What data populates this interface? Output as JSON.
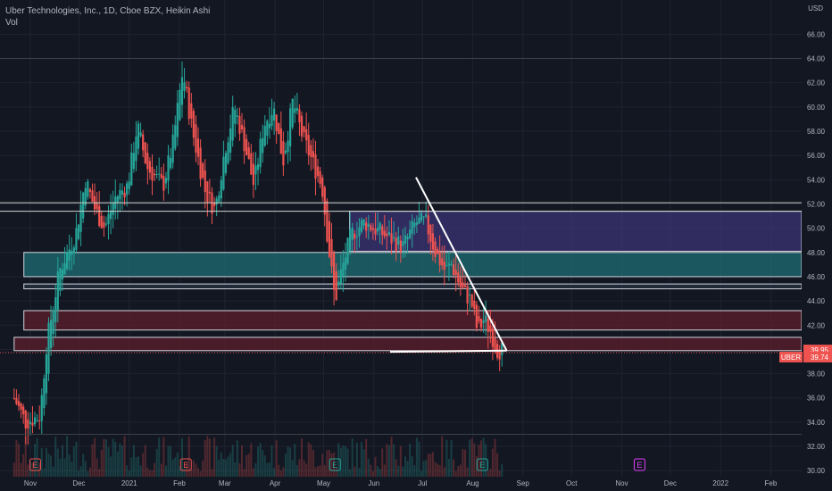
{
  "legend": {
    "title": "Uber Technologies, Inc., 1D, Cboe BZX, Heikin Ashi",
    "volume": "Vol"
  },
  "currency": "USD",
  "colors": {
    "background": "#131722",
    "grid": "#1f2330",
    "axis_text": "#b2b5be",
    "up": "#26a69a",
    "down": "#ef5350",
    "ticker_badge": "#ef5350"
  },
  "chart_data": {
    "type": "candlestick",
    "style": "Heikin Ashi",
    "y_ticks": [
      "30.00",
      "32.00",
      "34.00",
      "36.00",
      "38.00",
      "40.00",
      "42.00",
      "44.00",
      "46.00",
      "48.00",
      "50.00",
      "52.00",
      "54.00",
      "56.00",
      "58.00",
      "60.00",
      "62.00",
      "64.00",
      "66.00"
    ],
    "ylim": [
      29.5,
      67.5
    ],
    "x_labels": [
      {
        "label": "Nov",
        "day": 0
      },
      {
        "label": "Dec",
        "day": 30
      },
      {
        "label": "2021",
        "day": 61
      },
      {
        "label": "Feb",
        "day": 92
      },
      {
        "label": "Mar",
        "day": 120
      },
      {
        "label": "Apr",
        "day": 151
      },
      {
        "label": "May",
        "day": 181
      },
      {
        "label": "Jun",
        "day": 212
      },
      {
        "label": "Jul",
        "day": 242
      },
      {
        "label": "Aug",
        "day": 273
      },
      {
        "label": "Sep",
        "day": 304
      },
      {
        "label": "Oct",
        "day": 334
      },
      {
        "label": "Nov",
        "day": 365
      },
      {
        "label": "Dec",
        "day": 395
      },
      {
        "label": "2022",
        "day": 426
      },
      {
        "label": "Feb",
        "day": 457
      }
    ],
    "price_path": [
      [
        -10,
        36.0
      ],
      [
        -3,
        34.0
      ],
      [
        6,
        34.5
      ],
      [
        10,
        40.5
      ],
      [
        18,
        46.5
      ],
      [
        28,
        49.5
      ],
      [
        34,
        54.0
      ],
      [
        40,
        51.5
      ],
      [
        46,
        50.0
      ],
      [
        52,
        52.5
      ],
      [
        60,
        53.5
      ],
      [
        66,
        58.5
      ],
      [
        72,
        55.0
      ],
      [
        82,
        53.5
      ],
      [
        88,
        57.0
      ],
      [
        94,
        63.0
      ],
      [
        100,
        58.0
      ],
      [
        108,
        53.0
      ],
      [
        114,
        51.5
      ],
      [
        120,
        56.5
      ],
      [
        126,
        60.0
      ],
      [
        132,
        57.0
      ],
      [
        138,
        53.5
      ],
      [
        144,
        58.5
      ],
      [
        150,
        60.0
      ],
      [
        156,
        55.5
      ],
      [
        162,
        60.5
      ],
      [
        168,
        57.5
      ],
      [
        174,
        55.5
      ],
      [
        180,
        53.5
      ],
      [
        184,
        48.5
      ],
      [
        188,
        44.0
      ],
      [
        192,
        46.5
      ],
      [
        198,
        49.5
      ],
      [
        206,
        50.5
      ],
      [
        218,
        49.5
      ],
      [
        230,
        48.5
      ],
      [
        238,
        50.5
      ],
      [
        244,
        50.5
      ],
      [
        250,
        48.0
      ],
      [
        256,
        46.5
      ],
      [
        260,
        47.0
      ],
      [
        266,
        45.0
      ],
      [
        272,
        44.0
      ],
      [
        276,
        41.5
      ],
      [
        280,
        42.5
      ],
      [
        284,
        41.5
      ],
      [
        288,
        40.0
      ],
      [
        292,
        39.9
      ]
    ],
    "last_price": "39.95",
    "ticker": "UBER",
    "ticker_price": "39.74",
    "horizontal_lines": [
      52.1,
      51.4,
      64.0,
      33.0
    ],
    "zones": [
      {
        "name": "teal-support",
        "from_day": -4,
        "y_top": 48.0,
        "y_bottom": 46.0,
        "color": "#1f6e74"
      },
      {
        "name": "thin-zone",
        "from_day": -4,
        "y_top": 45.4,
        "y_bottom": 45.0,
        "color": "#243040"
      },
      {
        "name": "red-zone-upper",
        "from_day": -4,
        "y_top": 43.2,
        "y_bottom": 41.6,
        "color": "#5e1f2c"
      },
      {
        "name": "red-zone-lower",
        "from_day": -10,
        "y_top": 41.0,
        "y_bottom": 39.9,
        "color": "#5e1f2c"
      },
      {
        "name": "purple-range",
        "from_day": 197,
        "y_top": 51.4,
        "y_bottom": 48.1,
        "color": "#3c3475"
      }
    ],
    "trendlines": [
      {
        "from": [
          238,
          54.2
        ],
        "to": [
          294,
          39.9
        ]
      },
      {
        "from": [
          222,
          39.8
        ],
        "to": [
          294,
          39.9
        ]
      }
    ],
    "earnings_markers": [
      {
        "day": 3,
        "label": "E",
        "color": "#ef5350"
      },
      {
        "day": 96,
        "label": "E",
        "color": "#ef5350"
      },
      {
        "day": 188,
        "label": "E",
        "color": "#26a69a"
      },
      {
        "day": 279,
        "label": "E",
        "color": "#26a69a"
      },
      {
        "day": 376,
        "label": "E",
        "color": "#e040fb"
      }
    ]
  }
}
